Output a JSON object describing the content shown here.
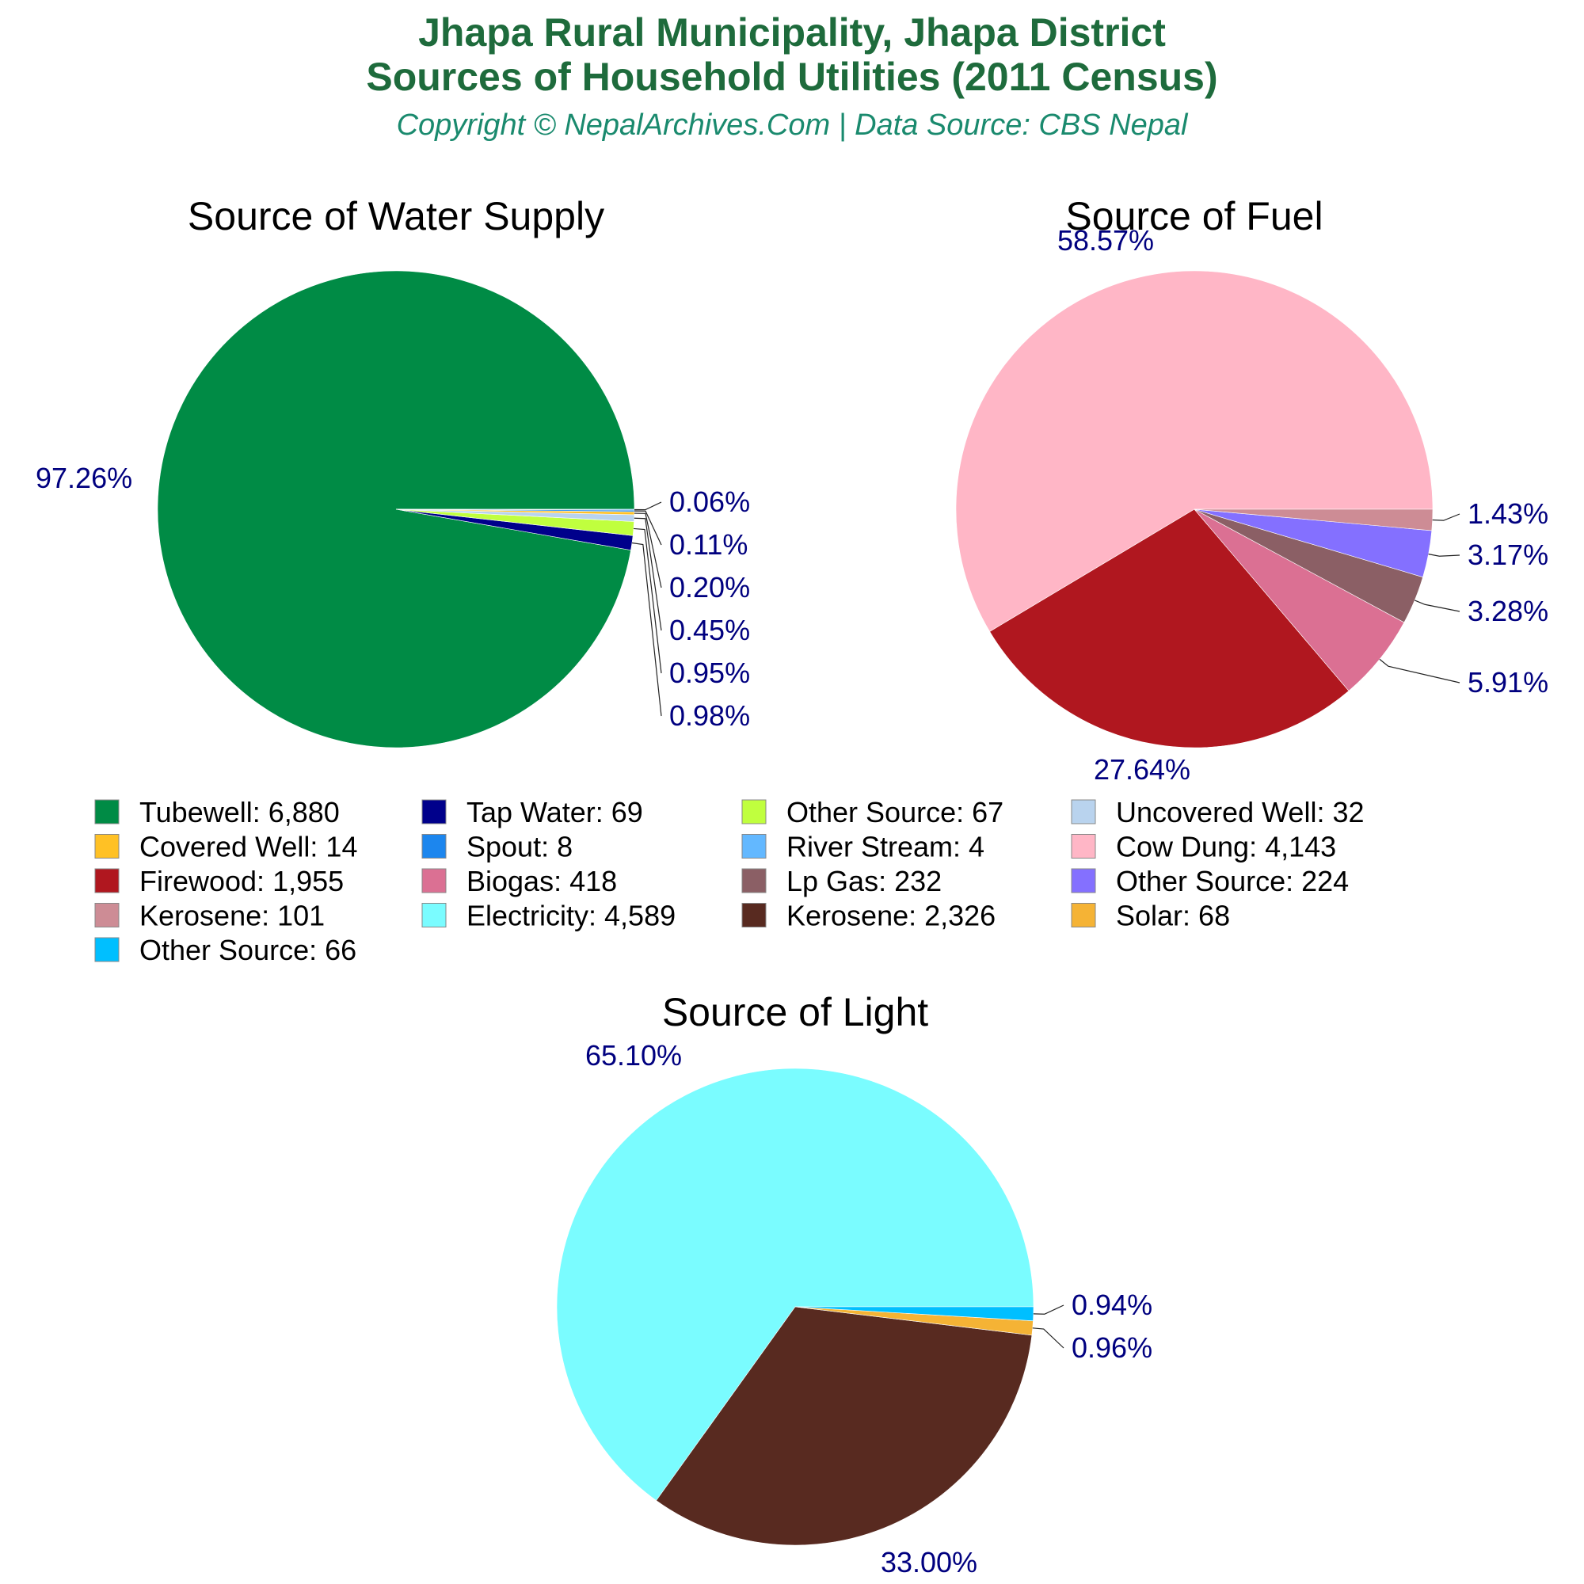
{
  "header": {
    "title_line1": "Jhapa Rural Municipality, Jhapa District",
    "title_line2": "Sources of Household Utilities (2011 Census)",
    "subtitle": "Copyright © NepalArchives.Com | Data Source: CBS Nepal"
  },
  "chart_data": [
    {
      "type": "pie",
      "title": "Source of Water Supply",
      "slices": [
        {
          "name": "Tubewell",
          "value": 6880,
          "percent_label": "97.26%",
          "color": "#008b45"
        },
        {
          "name": "Tap Water",
          "value": 69,
          "percent_label": "0.98%",
          "color": "#00008b"
        },
        {
          "name": "Other Source",
          "value": 67,
          "percent_label": "0.95%",
          "color": "#c0ff3e"
        },
        {
          "name": "Uncovered Well",
          "value": 32,
          "percent_label": "0.45%",
          "color": "#b9d3ee"
        },
        {
          "name": "Covered Well",
          "value": 14,
          "percent_label": "0.20%",
          "color": "#ffc125"
        },
        {
          "name": "Spout",
          "value": 8,
          "percent_label": "0.11%",
          "color": "#1c86ee"
        },
        {
          "name": "River Stream",
          "value": 4,
          "percent_label": "0.06%",
          "color": "#63b8ff"
        }
      ]
    },
    {
      "type": "pie",
      "title": "Source of Fuel",
      "slices": [
        {
          "name": "Cow Dung",
          "value": 4143,
          "percent_label": "58.57%",
          "color": "#ffb6c6"
        },
        {
          "name": "Firewood",
          "value": 1955,
          "percent_label": "27.64%",
          "color": "#b0171f"
        },
        {
          "name": "Biogas",
          "value": 418,
          "percent_label": "5.91%",
          "color": "#db7093"
        },
        {
          "name": "Lp Gas",
          "value": 232,
          "percent_label": "3.28%",
          "color": "#8b5f65"
        },
        {
          "name": "Other Source",
          "value": 224,
          "percent_label": "3.17%",
          "color": "#8470ff"
        },
        {
          "name": "Kerosene",
          "value": 101,
          "percent_label": "1.43%",
          "color": "#cd8c95"
        }
      ]
    },
    {
      "type": "pie",
      "title": "Source of Light",
      "slices": [
        {
          "name": "Electricity",
          "value": 4589,
          "percent_label": "65.10%",
          "color": "#7afcff"
        },
        {
          "name": "Kerosene",
          "value": 2326,
          "percent_label": "33.00%",
          "color": "#582a20"
        },
        {
          "name": "Solar",
          "value": 68,
          "percent_label": "0.96%",
          "color": "#f5b335"
        },
        {
          "name": "Other Source",
          "value": 66,
          "percent_label": "0.94%",
          "color": "#00bfff"
        }
      ]
    }
  ],
  "legend": {
    "items": [
      {
        "label": "Tubewell: 6,880",
        "color": "#008b45"
      },
      {
        "label": "Tap Water: 69",
        "color": "#00008b"
      },
      {
        "label": "Other Source: 67",
        "color": "#c0ff3e"
      },
      {
        "label": "Uncovered Well: 32",
        "color": "#b9d3ee"
      },
      {
        "label": "Covered Well: 14",
        "color": "#ffc125"
      },
      {
        "label": "Spout: 8",
        "color": "#1c86ee"
      },
      {
        "label": "River Stream: 4",
        "color": "#63b8ff"
      },
      {
        "label": "Cow Dung: 4,143",
        "color": "#ffb6c6"
      },
      {
        "label": "Firewood: 1,955",
        "color": "#b0171f"
      },
      {
        "label": "Biogas: 418",
        "color": "#db7093"
      },
      {
        "label": "Lp Gas: 232",
        "color": "#8b5f65"
      },
      {
        "label": "Other Source: 224",
        "color": "#8470ff"
      },
      {
        "label": "Kerosene: 101",
        "color": "#cd8c95"
      },
      {
        "label": "Electricity: 4,589",
        "color": "#7afcff"
      },
      {
        "label": "Kerosene: 2,326",
        "color": "#582a20"
      },
      {
        "label": "Solar: 68",
        "color": "#f5b335"
      },
      {
        "label": "Other Source: 66",
        "color": "#00bfff"
      }
    ]
  }
}
